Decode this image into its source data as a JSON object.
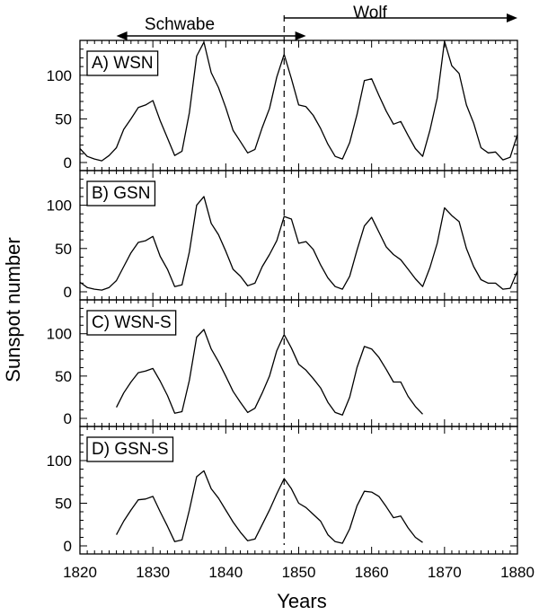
{
  "chart_data": [
    {
      "type": "line",
      "label": "A) WSN",
      "xlim": [
        1820,
        1880
      ],
      "ylim": [
        0,
        140
      ],
      "yticks": [
        0,
        50,
        100
      ],
      "x": [
        1820,
        1821,
        1822,
        1823,
        1824,
        1825,
        1826,
        1827,
        1828,
        1829,
        1830,
        1831,
        1832,
        1833,
        1834,
        1835,
        1836,
        1837,
        1838,
        1839,
        1840,
        1841,
        1842,
        1843,
        1844,
        1845,
        1846,
        1847,
        1848,
        1849,
        1850,
        1851,
        1852,
        1853,
        1854,
        1855,
        1856,
        1857,
        1858,
        1859,
        1860,
        1861,
        1862,
        1863,
        1864,
        1865,
        1866,
        1867,
        1868,
        1869,
        1870,
        1871,
        1872,
        1873,
        1874,
        1875,
        1876,
        1877,
        1878,
        1879,
        1880
      ],
      "y": [
        16,
        7,
        4,
        2,
        8,
        17,
        38,
        50,
        63,
        66,
        71,
        48,
        28,
        8,
        13,
        57,
        122,
        138,
        103,
        86,
        63,
        37,
        24,
        11,
        15,
        40,
        62,
        98,
        124,
        96,
        66,
        64,
        54,
        39,
        21,
        7,
        4,
        23,
        55,
        94,
        96,
        77,
        59,
        44,
        47,
        31,
        16,
        7,
        37,
        74,
        139,
        111,
        102,
        66,
        45,
        17,
        11,
        12,
        3,
        6,
        32
      ]
    },
    {
      "type": "line",
      "label": "B) GSN",
      "xlim": [
        1820,
        1880
      ],
      "ylim": [
        0,
        140
      ],
      "yticks": [
        0,
        50,
        100
      ],
      "x": [
        1820,
        1821,
        1822,
        1823,
        1824,
        1825,
        1826,
        1827,
        1828,
        1829,
        1830,
        1831,
        1832,
        1833,
        1834,
        1835,
        1836,
        1837,
        1838,
        1839,
        1840,
        1841,
        1842,
        1843,
        1844,
        1845,
        1846,
        1847,
        1848,
        1849,
        1850,
        1851,
        1852,
        1853,
        1854,
        1855,
        1856,
        1857,
        1858,
        1859,
        1860,
        1861,
        1862,
        1863,
        1864,
        1865,
        1866,
        1867,
        1868,
        1869,
        1870,
        1871,
        1872,
        1873,
        1874,
        1875,
        1876,
        1877,
        1878,
        1879,
        1880
      ],
      "y": [
        11,
        5,
        3,
        2,
        5,
        13,
        29,
        45,
        57,
        59,
        64,
        41,
        26,
        6,
        8,
        46,
        100,
        110,
        79,
        66,
        47,
        26,
        18,
        7,
        10,
        29,
        43,
        59,
        87,
        84,
        56,
        58,
        49,
        31,
        16,
        6,
        3,
        18,
        48,
        76,
        86,
        69,
        52,
        43,
        37,
        26,
        15,
        6,
        28,
        56,
        97,
        88,
        81,
        50,
        29,
        14,
        10,
        10,
        3,
        4,
        24
      ]
    },
    {
      "type": "line",
      "label": "C) WSN-S",
      "xlim": [
        1820,
        1880
      ],
      "ylim": [
        0,
        140
      ],
      "yticks": [
        0,
        50,
        100
      ],
      "x": [
        1825,
        1826,
        1827,
        1828,
        1829,
        1830,
        1831,
        1832,
        1833,
        1834,
        1835,
        1836,
        1837,
        1838,
        1839,
        1840,
        1841,
        1842,
        1843,
        1844,
        1845,
        1846,
        1847,
        1848,
        1849,
        1850,
        1851,
        1852,
        1853,
        1854,
        1855,
        1856,
        1857,
        1858,
        1859,
        1860,
        1861,
        1862,
        1863,
        1864,
        1865,
        1866,
        1867
      ],
      "y": [
        13,
        30,
        43,
        54,
        56,
        59,
        44,
        27,
        6,
        8,
        45,
        96,
        105,
        82,
        67,
        50,
        32,
        19,
        7,
        12,
        30,
        50,
        80,
        99,
        83,
        64,
        57,
        47,
        36,
        19,
        7,
        4,
        25,
        60,
        85,
        82,
        72,
        58,
        43,
        43,
        26,
        14,
        5
      ]
    },
    {
      "type": "line",
      "label": "D) GSN-S",
      "xlim": [
        1820,
        1880
      ],
      "ylim": [
        0,
        140
      ],
      "yticks": [
        0,
        50,
        100
      ],
      "x": [
        1825,
        1826,
        1827,
        1828,
        1829,
        1830,
        1831,
        1832,
        1833,
        1834,
        1835,
        1836,
        1837,
        1838,
        1839,
        1840,
        1841,
        1842,
        1843,
        1844,
        1845,
        1846,
        1847,
        1848,
        1849,
        1850,
        1851,
        1852,
        1853,
        1854,
        1855,
        1856,
        1857,
        1858,
        1859,
        1860,
        1861,
        1862,
        1863,
        1864,
        1865,
        1866,
        1867
      ],
      "y": [
        13,
        29,
        42,
        54,
        55,
        58,
        40,
        23,
        5,
        7,
        42,
        81,
        88,
        67,
        56,
        42,
        28,
        16,
        6,
        8,
        25,
        42,
        61,
        79,
        67,
        50,
        45,
        37,
        29,
        13,
        5,
        3,
        20,
        47,
        64,
        63,
        58,
        46,
        33,
        35,
        21,
        10,
        4
      ]
    }
  ],
  "xticks": [
    1820,
    1830,
    1840,
    1850,
    1860,
    1870,
    1880
  ],
  "xlabel": "Years",
  "ylabel": "Sunspot number",
  "marker_year": 1848,
  "annotations": {
    "left_label": "Schwabe",
    "right_label": "Wolf",
    "left_arrow_x": [
      1825,
      1851
    ],
    "right_arrow_x": [
      1848,
      1880
    ]
  }
}
